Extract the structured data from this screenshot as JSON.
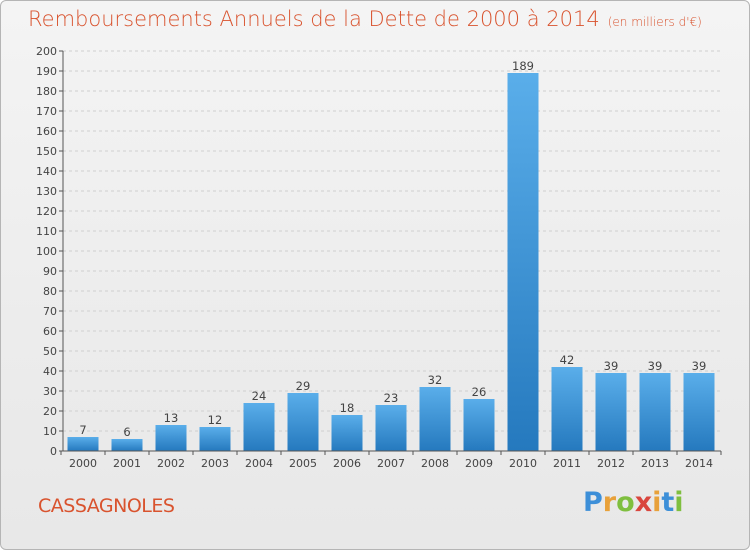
{
  "title": "Remboursements Annuels de la Dette de 2000 à 2014",
  "unit_label": "(en milliers d'€)",
  "city": "CASSAGNOLES",
  "logo": {
    "letters": [
      "P",
      "r",
      "o",
      "x",
      "i",
      "t",
      "i"
    ]
  },
  "colors": {
    "title": "#d9532e",
    "bar_light": "#5aaeea",
    "bar_dark": "#2579be",
    "grid": "#cfcfcf",
    "axis": "#555555"
  },
  "chart_data": {
    "type": "bar",
    "title": "Remboursements Annuels de la Dette de 2000 à 2014",
    "subtitle": "(en milliers d'€)",
    "xlabel": "",
    "ylabel": "",
    "categories": [
      "2000",
      "2001",
      "2002",
      "2003",
      "2004",
      "2005",
      "2006",
      "2007",
      "2008",
      "2009",
      "2010",
      "2011",
      "2012",
      "2013",
      "2014"
    ],
    "values": [
      7,
      6,
      13,
      12,
      24,
      29,
      18,
      23,
      32,
      26,
      189,
      42,
      39,
      39,
      39
    ],
    "ylim": [
      0,
      200
    ],
    "yticks": [
      0,
      10,
      20,
      30,
      40,
      50,
      60,
      70,
      80,
      90,
      100,
      110,
      120,
      130,
      140,
      150,
      160,
      170,
      180,
      190,
      200
    ],
    "grid": true,
    "data_labels": true
  }
}
